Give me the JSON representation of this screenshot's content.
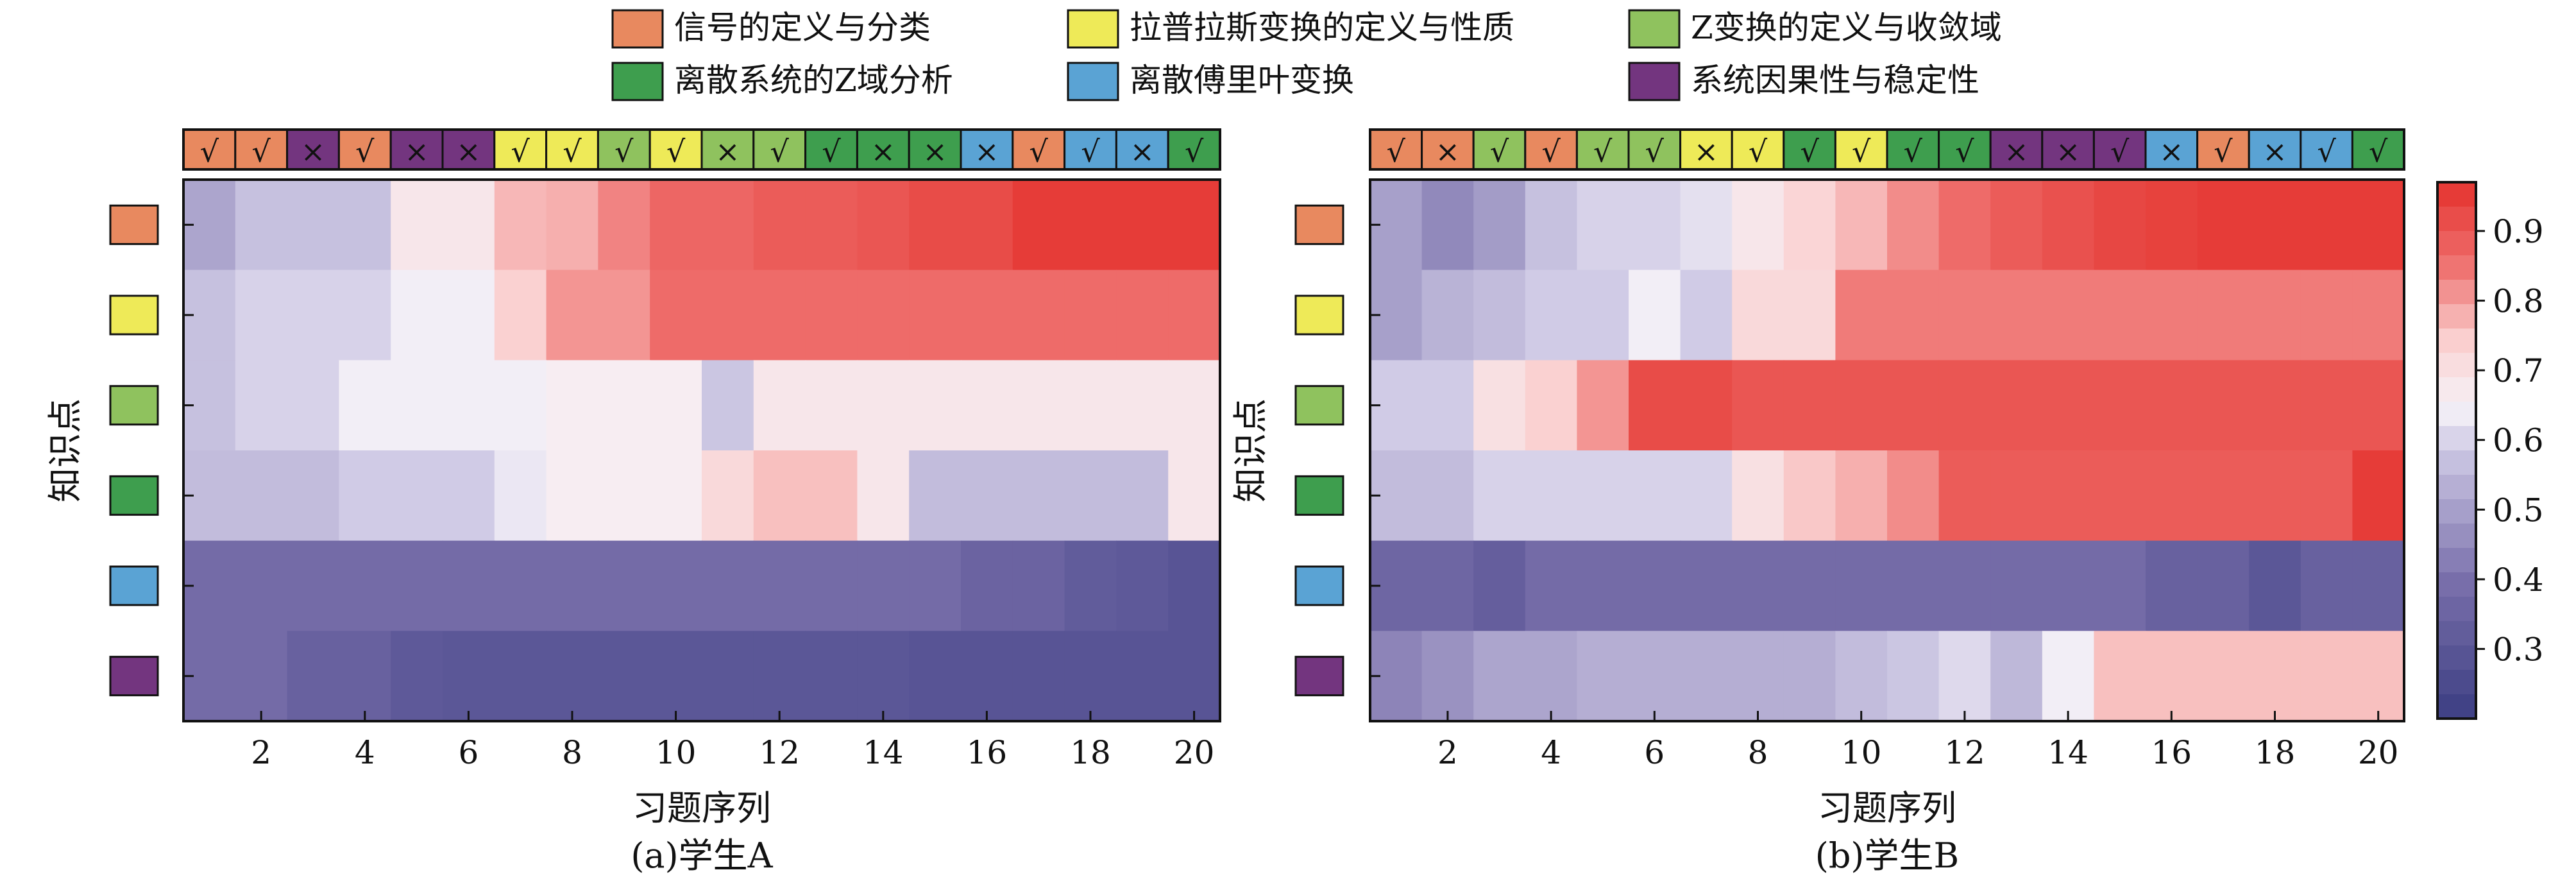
{
  "legend": {
    "items": [
      {
        "label": "信号的定义与分类",
        "color": "#E8895F"
      },
      {
        "label": "拉普拉斯变换的定义与性质",
        "color": "#EEEA58"
      },
      {
        "label": "Z变换的定义与收敛域",
        "color": "#8FC25E"
      },
      {
        "label": "离散系统的Z域分析",
        "color": "#3E9E4E"
      },
      {
        "label": "离散傅里叶变换",
        "color": "#5AA3D4"
      },
      {
        "label": "系统因果性与稳定性",
        "color": "#73357F"
      }
    ]
  },
  "chart_data": [
    {
      "type": "heatmap",
      "caption": "(a)学生A",
      "xlabel": "习题序列",
      "ylabel": "知识点",
      "x_ticks": [
        2,
        4,
        6,
        8,
        10,
        12,
        14,
        16,
        18,
        20
      ],
      "exercise_tags": [
        {
          "kp": 0,
          "mark": "√"
        },
        {
          "kp": 0,
          "mark": "√"
        },
        {
          "kp": 5,
          "mark": "×"
        },
        {
          "kp": 0,
          "mark": "√"
        },
        {
          "kp": 5,
          "mark": "×"
        },
        {
          "kp": 5,
          "mark": "×"
        },
        {
          "kp": 1,
          "mark": "√"
        },
        {
          "kp": 1,
          "mark": "√"
        },
        {
          "kp": 2,
          "mark": "√"
        },
        {
          "kp": 1,
          "mark": "√"
        },
        {
          "kp": 2,
          "mark": "×"
        },
        {
          "kp": 2,
          "mark": "√"
        },
        {
          "kp": 3,
          "mark": "√"
        },
        {
          "kp": 3,
          "mark": "×"
        },
        {
          "kp": 3,
          "mark": "×"
        },
        {
          "kp": 4,
          "mark": "×"
        },
        {
          "kp": 0,
          "mark": "√"
        },
        {
          "kp": 4,
          "mark": "√"
        },
        {
          "kp": 4,
          "mark": "×"
        },
        {
          "kp": 3,
          "mark": "√"
        }
      ],
      "rows": [
        [
          0.51,
          0.57,
          0.57,
          0.57,
          0.68,
          0.68,
          0.77,
          0.78,
          0.83,
          0.87,
          0.87,
          0.89,
          0.89,
          0.9,
          0.92,
          0.92,
          0.95,
          0.95,
          0.95,
          0.95
        ],
        [
          0.57,
          0.6,
          0.6,
          0.6,
          0.64,
          0.64,
          0.74,
          0.81,
          0.81,
          0.86,
          0.86,
          0.86,
          0.86,
          0.86,
          0.86,
          0.86,
          0.86,
          0.86,
          0.86,
          0.86
        ],
        [
          0.57,
          0.6,
          0.6,
          0.64,
          0.64,
          0.64,
          0.64,
          0.66,
          0.66,
          0.66,
          0.58,
          0.68,
          0.68,
          0.68,
          0.68,
          0.68,
          0.68,
          0.68,
          0.68,
          0.68
        ],
        [
          0.56,
          0.56,
          0.56,
          0.59,
          0.59,
          0.59,
          0.63,
          0.66,
          0.66,
          0.66,
          0.72,
          0.76,
          0.76,
          0.68,
          0.56,
          0.56,
          0.56,
          0.56,
          0.56,
          0.68
        ],
        [
          0.38,
          0.38,
          0.38,
          0.38,
          0.38,
          0.38,
          0.38,
          0.38,
          0.38,
          0.38,
          0.38,
          0.38,
          0.38,
          0.38,
          0.38,
          0.35,
          0.35,
          0.32,
          0.31,
          0.29
        ],
        [
          0.38,
          0.38,
          0.34,
          0.34,
          0.31,
          0.3,
          0.3,
          0.3,
          0.3,
          0.3,
          0.3,
          0.3,
          0.3,
          0.3,
          0.29,
          0.29,
          0.29,
          0.29,
          0.29,
          0.29
        ]
      ],
      "cmin": 0.2,
      "cmax": 0.97
    },
    {
      "type": "heatmap",
      "caption": "(b)学生B",
      "xlabel": "习题序列",
      "ylabel": "知识点",
      "x_ticks": [
        2,
        4,
        6,
        8,
        10,
        12,
        14,
        16,
        18,
        20
      ],
      "exercise_tags": [
        {
          "kp": 0,
          "mark": "√"
        },
        {
          "kp": 0,
          "mark": "×"
        },
        {
          "kp": 2,
          "mark": "√"
        },
        {
          "kp": 0,
          "mark": "√"
        },
        {
          "kp": 2,
          "mark": "√"
        },
        {
          "kp": 2,
          "mark": "√"
        },
        {
          "kp": 1,
          "mark": "×"
        },
        {
          "kp": 1,
          "mark": "√"
        },
        {
          "kp": 3,
          "mark": "√"
        },
        {
          "kp": 1,
          "mark": "√"
        },
        {
          "kp": 3,
          "mark": "√"
        },
        {
          "kp": 3,
          "mark": "√"
        },
        {
          "kp": 5,
          "mark": "×"
        },
        {
          "kp": 5,
          "mark": "×"
        },
        {
          "kp": 5,
          "mark": "√"
        },
        {
          "kp": 4,
          "mark": "×"
        },
        {
          "kp": 0,
          "mark": "√"
        },
        {
          "kp": 4,
          "mark": "×"
        },
        {
          "kp": 4,
          "mark": "√"
        },
        {
          "kp": 3,
          "mark": "√"
        }
      ],
      "rows": [
        [
          0.5,
          0.45,
          0.49,
          0.57,
          0.6,
          0.6,
          0.62,
          0.68,
          0.73,
          0.77,
          0.82,
          0.86,
          0.89,
          0.91,
          0.93,
          0.94,
          0.95,
          0.95,
          0.95,
          0.95
        ],
        [
          0.5,
          0.54,
          0.56,
          0.59,
          0.59,
          0.64,
          0.59,
          0.72,
          0.72,
          0.84,
          0.84,
          0.84,
          0.84,
          0.84,
          0.84,
          0.84,
          0.84,
          0.84,
          0.84,
          0.84
        ],
        [
          0.59,
          0.59,
          0.7,
          0.74,
          0.81,
          0.92,
          0.92,
          0.9,
          0.9,
          0.9,
          0.9,
          0.9,
          0.9,
          0.9,
          0.9,
          0.9,
          0.9,
          0.9,
          0.9,
          0.9
        ],
        [
          0.56,
          0.56,
          0.6,
          0.6,
          0.6,
          0.6,
          0.6,
          0.7,
          0.75,
          0.78,
          0.82,
          0.89,
          0.89,
          0.89,
          0.89,
          0.89,
          0.89,
          0.89,
          0.89,
          0.95
        ],
        [
          0.36,
          0.36,
          0.33,
          0.38,
          0.38,
          0.38,
          0.38,
          0.38,
          0.38,
          0.38,
          0.38,
          0.38,
          0.38,
          0.38,
          0.38,
          0.34,
          0.34,
          0.3,
          0.34,
          0.34
        ],
        [
          0.44,
          0.47,
          0.51,
          0.51,
          0.53,
          0.53,
          0.53,
          0.53,
          0.53,
          0.56,
          0.58,
          0.61,
          0.55,
          0.64,
          0.76,
          0.76,
          0.76,
          0.76,
          0.76,
          0.76
        ]
      ],
      "cmin": 0.2,
      "cmax": 0.97
    }
  ],
  "colorbar": {
    "ticks": [
      "0.3",
      "0.4",
      "0.5",
      "0.6",
      "0.7",
      "0.8",
      "0.9"
    ],
    "tick_values": [
      0.3,
      0.4,
      0.5,
      0.6,
      0.7,
      0.8,
      0.9
    ],
    "min": 0.2,
    "max": 0.97
  }
}
